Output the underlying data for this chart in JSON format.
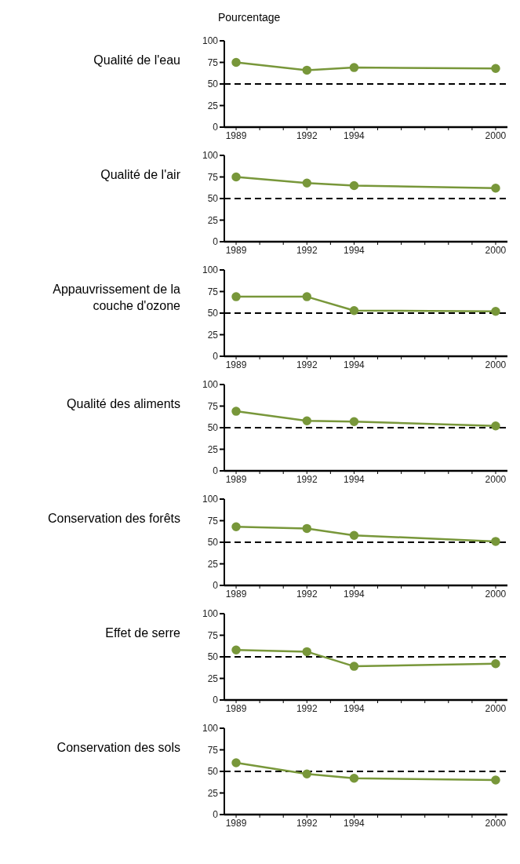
{
  "chart_data": [
    {
      "type": "line",
      "title": "Qualité de l'eau",
      "ylabel": "Pourcentage",
      "x": [
        1989,
        1992,
        1994,
        2000
      ],
      "values": [
        75,
        66,
        69,
        68
      ],
      "color": "#78973a",
      "marker": "circle",
      "xlim": [
        1988.5,
        2000.5
      ],
      "xticks": [
        1989,
        {
          "value": 1990,
          "label": null
        },
        {
          "value": 1991,
          "label": null
        },
        1992,
        {
          "value": 1993,
          "label": null
        },
        1994,
        {
          "value": 1995,
          "label": null
        },
        {
          "value": 1996,
          "label": null
        },
        {
          "value": 1997,
          "label": null
        },
        {
          "value": 1998,
          "label": null
        },
        {
          "value": 1999,
          "label": null
        },
        2000
      ],
      "ylim": [
        0,
        100
      ],
      "yticks": [
        0,
        25,
        50,
        75,
        100
      ],
      "ref_lines": [
        {
          "axis": "y",
          "value": 50,
          "color": "#000000",
          "line_style": "dashed"
        }
      ]
    },
    {
      "type": "line",
      "title": "Qualité de l'air",
      "x": [
        1989,
        1992,
        1994,
        2000
      ],
      "values": [
        75,
        68,
        65,
        62
      ],
      "color": "#78973a",
      "marker": "circle",
      "xlim": [
        1988.5,
        2000.5
      ],
      "xticks": [
        1989,
        {
          "value": 1990,
          "label": null
        },
        {
          "value": 1991,
          "label": null
        },
        1992,
        {
          "value": 1993,
          "label": null
        },
        1994,
        {
          "value": 1995,
          "label": null
        },
        {
          "value": 1996,
          "label": null
        },
        {
          "value": 1997,
          "label": null
        },
        {
          "value": 1998,
          "label": null
        },
        {
          "value": 1999,
          "label": null
        },
        2000
      ],
      "ylim": [
        0,
        100
      ],
      "yticks": [
        0,
        25,
        50,
        75,
        100
      ],
      "ref_lines": [
        {
          "axis": "y",
          "value": 50,
          "color": "#000000",
          "line_style": "dashed"
        }
      ]
    },
    {
      "type": "line",
      "title": "Appauvrissement de la couche d'ozone",
      "x": [
        1989,
        1992,
        1994,
        2000
      ],
      "values": [
        69,
        69,
        53,
        52
      ],
      "color": "#78973a",
      "marker": "circle",
      "xlim": [
        1988.5,
        2000.5
      ],
      "xticks": [
        1989,
        {
          "value": 1990,
          "label": null
        },
        {
          "value": 1991,
          "label": null
        },
        1992,
        {
          "value": 1993,
          "label": null
        },
        1994,
        {
          "value": 1995,
          "label": null
        },
        {
          "value": 1996,
          "label": null
        },
        {
          "value": 1997,
          "label": null
        },
        {
          "value": 1998,
          "label": null
        },
        {
          "value": 1999,
          "label": null
        },
        2000
      ],
      "ylim": [
        0,
        100
      ],
      "yticks": [
        0,
        25,
        50,
        75,
        100
      ],
      "ref_lines": [
        {
          "axis": "y",
          "value": 50,
          "color": "#000000",
          "line_style": "dashed"
        }
      ]
    },
    {
      "type": "line",
      "title": "Qualité des aliments",
      "x": [
        1989,
        1992,
        1994,
        2000
      ],
      "values": [
        69,
        58,
        57,
        52
      ],
      "color": "#78973a",
      "marker": "circle",
      "xlim": [
        1988.5,
        2000.5
      ],
      "xticks": [
        1989,
        {
          "value": 1990,
          "label": null
        },
        {
          "value": 1991,
          "label": null
        },
        1992,
        {
          "value": 1993,
          "label": null
        },
        1994,
        {
          "value": 1995,
          "label": null
        },
        {
          "value": 1996,
          "label": null
        },
        {
          "value": 1997,
          "label": null
        },
        {
          "value": 1998,
          "label": null
        },
        {
          "value": 1999,
          "label": null
        },
        2000
      ],
      "ylim": [
        0,
        100
      ],
      "yticks": [
        0,
        25,
        50,
        75,
        100
      ],
      "ref_lines": [
        {
          "axis": "y",
          "value": 50,
          "color": "#000000",
          "line_style": "dashed"
        }
      ]
    },
    {
      "type": "line",
      "title": "Conservation des forêts",
      "x": [
        1989,
        1992,
        1994,
        2000
      ],
      "values": [
        68,
        66,
        58,
        51
      ],
      "color": "#78973a",
      "marker": "circle",
      "xlim": [
        1988.5,
        2000.5
      ],
      "xticks": [
        1989,
        {
          "value": 1990,
          "label": null
        },
        {
          "value": 1991,
          "label": null
        },
        1992,
        {
          "value": 1993,
          "label": null
        },
        1994,
        {
          "value": 1995,
          "label": null
        },
        {
          "value": 1996,
          "label": null
        },
        {
          "value": 1997,
          "label": null
        },
        {
          "value": 1998,
          "label": null
        },
        {
          "value": 1999,
          "label": null
        },
        2000
      ],
      "ylim": [
        0,
        100
      ],
      "yticks": [
        0,
        25,
        50,
        75,
        100
      ],
      "ref_lines": [
        {
          "axis": "y",
          "value": 50,
          "color": "#000000",
          "line_style": "dashed"
        }
      ]
    },
    {
      "type": "line",
      "title": "Effet de serre",
      "x": [
        1989,
        1992,
        1994,
        2000
      ],
      "values": [
        58,
        56,
        39,
        42
      ],
      "color": "#78973a",
      "marker": "circle",
      "xlim": [
        1988.5,
        2000.5
      ],
      "xticks": [
        1989,
        {
          "value": 1990,
          "label": null
        },
        {
          "value": 1991,
          "label": null
        },
        1992,
        {
          "value": 1993,
          "label": null
        },
        1994,
        {
          "value": 1995,
          "label": null
        },
        {
          "value": 1996,
          "label": null
        },
        {
          "value": 1997,
          "label": null
        },
        {
          "value": 1998,
          "label": null
        },
        {
          "value": 1999,
          "label": null
        },
        2000
      ],
      "ylim": [
        0,
        100
      ],
      "yticks": [
        0,
        25,
        50,
        75,
        100
      ],
      "ref_lines": [
        {
          "axis": "y",
          "value": 50,
          "color": "#000000",
          "line_style": "dashed"
        }
      ]
    },
    {
      "type": "line",
      "title": "Conservation des sols",
      "x": [
        1989,
        1992,
        1994,
        2000
      ],
      "values": [
        60,
        47,
        42,
        40
      ],
      "color": "#78973a",
      "marker": "circle",
      "xlim": [
        1988.5,
        2000.5
      ],
      "xticks": [
        1989,
        {
          "value": 1990,
          "label": null
        },
        {
          "value": 1991,
          "label": null
        },
        1992,
        {
          "value": 1993,
          "label": null
        },
        1994,
        {
          "value": 1995,
          "label": null
        },
        {
          "value": 1996,
          "label": null
        },
        {
          "value": 1997,
          "label": null
        },
        {
          "value": 1998,
          "label": null
        },
        {
          "value": 1999,
          "label": null
        },
        2000
      ],
      "ylim": [
        0,
        100
      ],
      "yticks": [
        0,
        25,
        50,
        75,
        100
      ],
      "ref_lines": [
        {
          "axis": "y",
          "value": 50,
          "color": "#000000",
          "line_style": "dashed"
        }
      ]
    }
  ]
}
